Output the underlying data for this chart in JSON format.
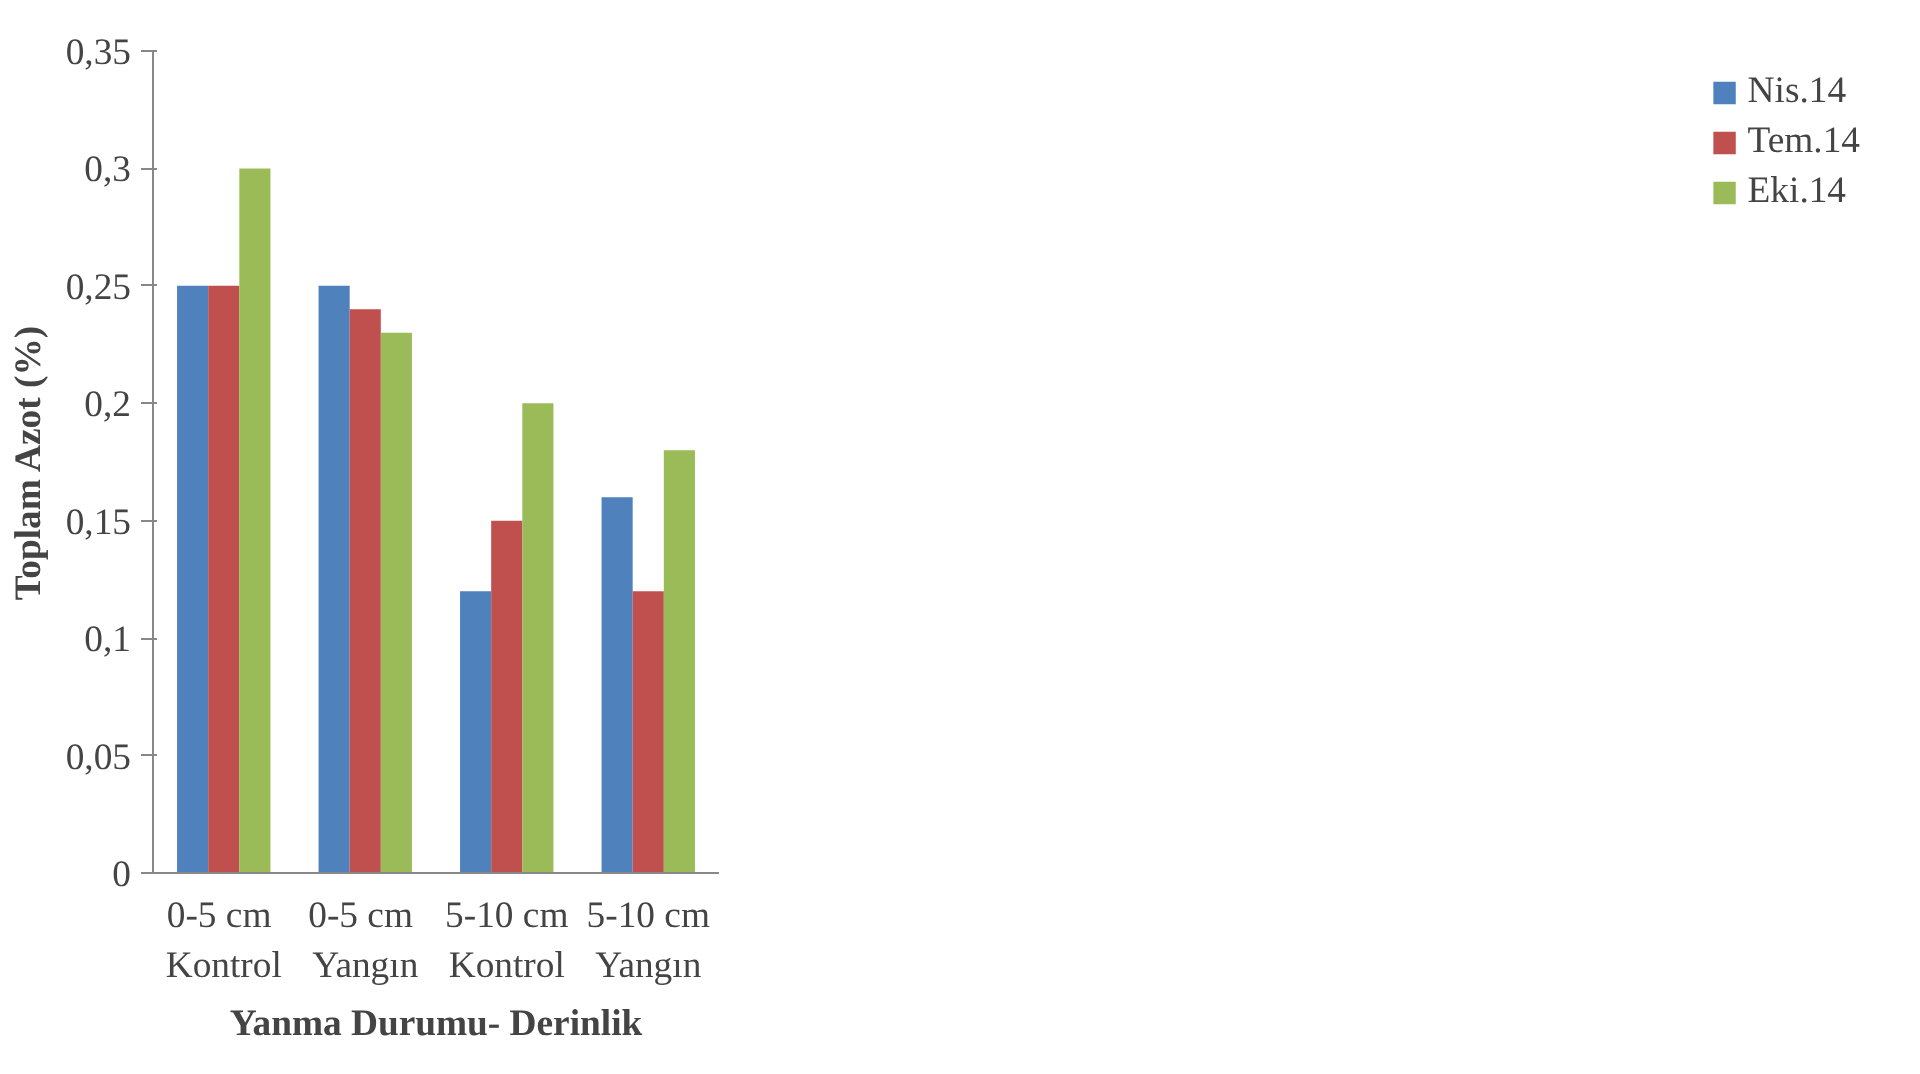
{
  "chart_data": {
    "type": "bar",
    "xlabel": "Yanma Durumu- Derinlik",
    "ylabel": "Toplam Azot (%)",
    "categories": [
      "0-5  cm\nKontrol",
      "0-5  cm\nYangın",
      "5-10 cm\nKontrol",
      "5-10 cm\nYangın"
    ],
    "series": [
      {
        "name": "Nis.14",
        "color": "#4f81bd",
        "values": [
          0.25,
          0.25,
          0.12,
          0.16
        ]
      },
      {
        "name": "Tem.14",
        "color": "#c0504d",
        "values": [
          0.25,
          0.24,
          0.15,
          0.12
        ]
      },
      {
        "name": "Eki.14",
        "color": "#9bbb59",
        "values": [
          0.3,
          0.23,
          0.2,
          0.18
        ]
      }
    ],
    "ylim": [
      0,
      0.35
    ],
    "yticks": [
      0,
      {
        "value": 0.05,
        "label": "0,05"
      },
      {
        "value": 0.1,
        "label": "0,1"
      },
      {
        "value": 0.15,
        "label": "0,15"
      },
      {
        "value": 0.2,
        "label": "0,2"
      },
      {
        "value": 0.25,
        "label": "0,25"
      },
      {
        "value": 0.3,
        "label": "0,3"
      },
      {
        "value": 0.35,
        "label": "0,35"
      }
    ],
    "grid": false,
    "legend": "right"
  }
}
